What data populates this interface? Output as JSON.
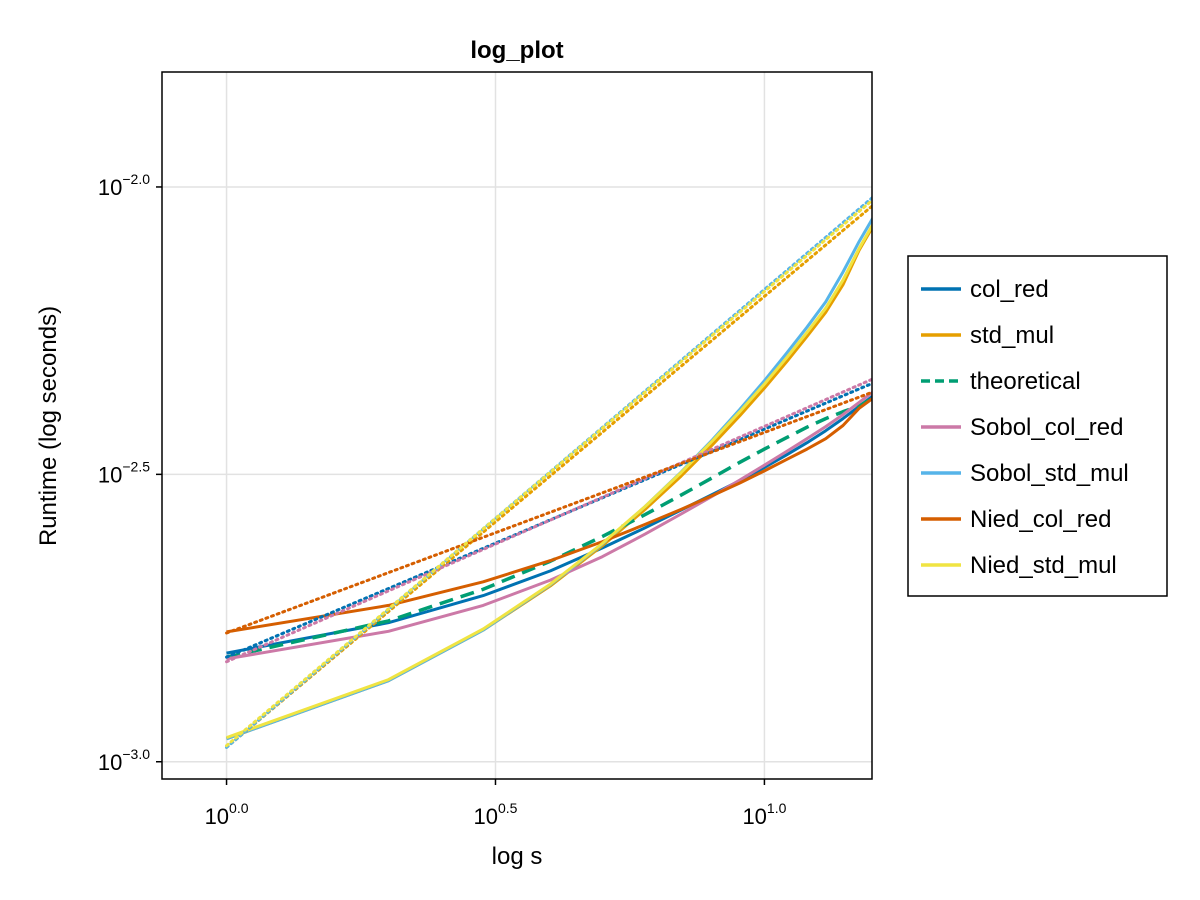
{
  "chart_data": {
    "type": "line",
    "title": "log_plot",
    "xlabel": "log s",
    "ylabel": "Runtime (log seconds)",
    "xscale": "log10",
    "yscale": "log10",
    "xlim_log10": [
      -0.12,
      1.2
    ],
    "ylim_log10": [
      -3.03,
      -1.8
    ],
    "x_ticks": [
      {
        "base": "10",
        "exp": "0.0",
        "log10": 0.0
      },
      {
        "base": "10",
        "exp": "0.5",
        "log10": 0.5
      },
      {
        "base": "10",
        "exp": "1.0",
        "log10": 1.0
      }
    ],
    "y_ticks": [
      {
        "base": "10",
        "exp": "−3.0",
        "log10": -3.0
      },
      {
        "base": "10",
        "exp": "−2.5",
        "log10": -2.5
      },
      {
        "base": "10",
        "exp": "−2.0",
        "log10": -2.0
      }
    ],
    "grid": true,
    "legend_position": "right",
    "x": [
      1,
      2,
      3,
      4,
      5,
      6,
      7,
      8,
      9,
      10,
      11,
      12,
      13,
      14,
      15,
      16,
      17,
      18
    ],
    "series": [
      {
        "name": "col_red",
        "style": "solid",
        "color": "#0072b2",
        "values_log10": [
          -2.811,
          -2.758,
          -2.711,
          -2.668,
          -2.628,
          -2.593,
          -2.562,
          -2.535,
          -2.511,
          -2.488,
          -2.466,
          -2.445,
          -2.424,
          -2.403,
          -2.382,
          -2.362,
          -2.342,
          -2.323
        ]
      },
      {
        "name": "std_mul",
        "style": "solid",
        "color": "#e69f00",
        "values_log10": [
          -2.96,
          -2.859,
          -2.771,
          -2.694,
          -2.624,
          -2.561,
          -2.503,
          -2.449,
          -2.398,
          -2.35,
          -2.304,
          -2.26,
          -2.218,
          -2.17,
          -2.11,
          -2.065,
          -2.022,
          -1.979
        ]
      },
      {
        "name": "theoretical",
        "style": "dashed",
        "color": "#009e73",
        "values_log10": [
          -2.818,
          -2.755,
          -2.7,
          -2.651,
          -2.608,
          -2.57,
          -2.536,
          -2.506,
          -2.479,
          -2.456,
          -2.436,
          -2.418,
          -2.403,
          -2.391,
          -2.381,
          -2.366,
          -2.349,
          -2.332
        ]
      },
      {
        "name": "Sobol_col_red",
        "style": "solid",
        "color": "#cc79a7",
        "values_log10": [
          -2.821,
          -2.773,
          -2.728,
          -2.684,
          -2.643,
          -2.604,
          -2.569,
          -2.538,
          -2.51,
          -2.484,
          -2.46,
          -2.438,
          -2.417,
          -2.396,
          -2.375,
          -2.355,
          -2.336,
          -2.317
        ]
      },
      {
        "name": "Sobol_std_mul",
        "style": "solid",
        "color": "#56b4e9",
        "values_log10": [
          -2.96,
          -2.859,
          -2.771,
          -2.692,
          -2.621,
          -2.556,
          -2.496,
          -2.44,
          -2.387,
          -2.337,
          -2.289,
          -2.244,
          -2.2,
          -2.148,
          -2.095,
          -2.05,
          -2.007,
          -1.966
        ]
      },
      {
        "name": "Nied_col_red",
        "style": "solid",
        "color": "#d55e00",
        "values_log10": [
          -2.774,
          -2.728,
          -2.687,
          -2.65,
          -2.617,
          -2.587,
          -2.561,
          -2.537,
          -2.515,
          -2.494,
          -2.474,
          -2.456,
          -2.438,
          -2.415,
          -2.385,
          -2.366,
          -2.352,
          -2.339
        ]
      },
      {
        "name": "Nied_std_mul",
        "style": "solid",
        "color": "#f0e442",
        "values_log10": [
          -2.958,
          -2.857,
          -2.769,
          -2.691,
          -2.62,
          -2.556,
          -2.497,
          -2.442,
          -2.391,
          -2.343,
          -2.297,
          -2.253,
          -2.211,
          -2.162,
          -2.107,
          -2.061,
          -2.016,
          -1.972
        ]
      }
    ],
    "fit_lines": [
      {
        "of": "col_red",
        "style": "dotted",
        "color": "#0072b2",
        "start_log10": -2.818,
        "end_log10": -2.32
      },
      {
        "of": "std_mul",
        "style": "dotted",
        "color": "#e69f00",
        "start_log10": -2.975,
        "end_log10": -1.99
      },
      {
        "of": "Sobol_col_red",
        "style": "dotted",
        "color": "#cc79a7",
        "start_log10": -2.826,
        "end_log10": -2.312
      },
      {
        "of": "Sobol_std_mul",
        "style": "dotted",
        "color": "#56b4e9",
        "start_log10": -2.975,
        "end_log10": -1.975
      },
      {
        "of": "Nied_col_red",
        "style": "dotted",
        "color": "#d55e00",
        "start_log10": -2.776,
        "end_log10": -2.338
      },
      {
        "of": "Nied_std_mul",
        "style": "dotted",
        "color": "#f0e442",
        "start_log10": -2.972,
        "end_log10": -1.98
      }
    ],
    "background_fits": [
      {
        "style": "dotted",
        "color": "#b9dcea",
        "start_log10": -2.972,
        "end_log10": -1.978
      },
      {
        "style": "dotted",
        "color": "#b9dcea",
        "start_log10": -2.82,
        "end_log10": -2.318
      }
    ]
  }
}
